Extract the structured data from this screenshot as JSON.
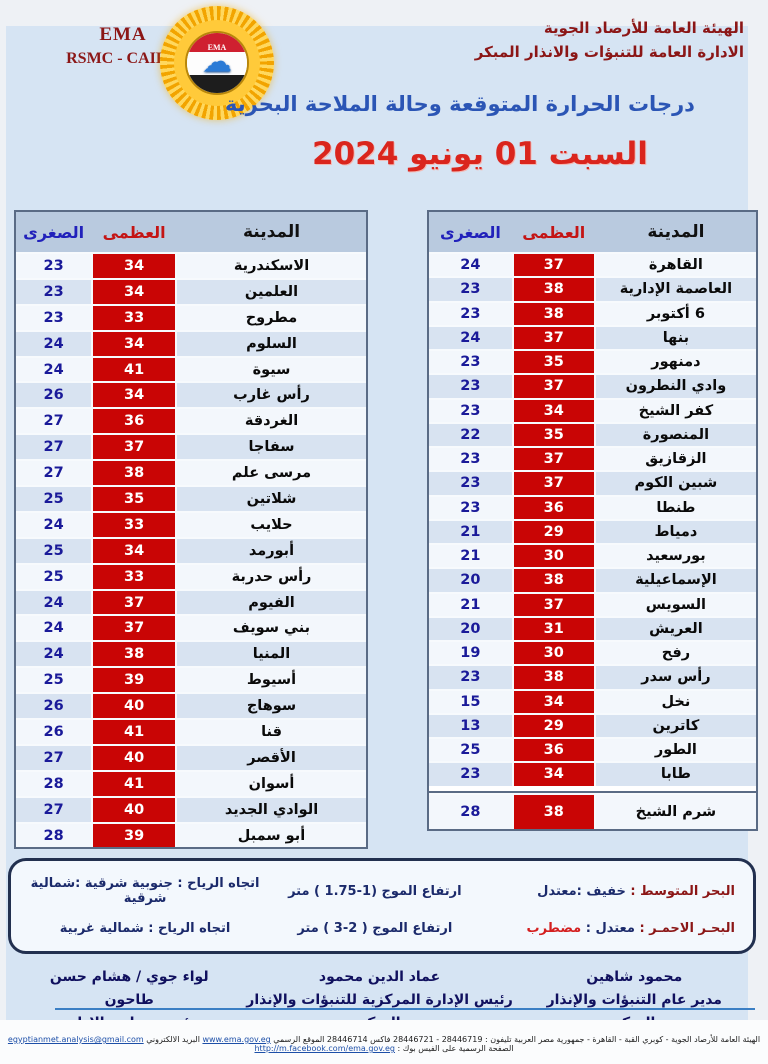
{
  "header": {
    "org_en_line1": "EMA",
    "org_en_line2": "RSMC - CAIRO",
    "org_ar_line1": "الهيئة العامة للأرصاد الجوية",
    "org_ar_line2": "الادارة العامة للتنبؤات والانذار المبكر",
    "logo_label": "EMA"
  },
  "title": "درجات الحرارة المتوقعة وحالة الملاحة البحرية",
  "date_line": "السبت 01 يونيو 2024",
  "table_headers": {
    "city": "المدينة",
    "max": "العظمى",
    "min": "الصغرى"
  },
  "left_table": {
    "rows": [
      {
        "city": "الاسكندرية",
        "min": 23,
        "max": 34
      },
      {
        "city": "العلمين",
        "min": 23,
        "max": 34
      },
      {
        "city": "مطروح",
        "min": 23,
        "max": 33
      },
      {
        "city": "السلوم",
        "min": 24,
        "max": 34
      },
      {
        "city": "سيوة",
        "min": 24,
        "max": 41
      },
      {
        "city": "رأس غارب",
        "min": 26,
        "max": 34
      },
      {
        "city": "الغردقة",
        "min": 27,
        "max": 36
      },
      {
        "city": "سفاجا",
        "min": 27,
        "max": 37
      },
      {
        "city": "مرسى علم",
        "min": 27,
        "max": 38
      },
      {
        "city": "شلاتين",
        "min": 25,
        "max": 35
      },
      {
        "city": "حلايب",
        "min": 24,
        "max": 33
      },
      {
        "city": "أبورمد",
        "min": 25,
        "max": 34
      },
      {
        "city": "رأس حدربة",
        "min": 25,
        "max": 33
      },
      {
        "city": "الفيوم",
        "min": 24,
        "max": 37
      },
      {
        "city": "بني سويف",
        "min": 24,
        "max": 37
      },
      {
        "city": "المنيا",
        "min": 24,
        "max": 38
      },
      {
        "city": "أسيوط",
        "min": 25,
        "max": 39
      },
      {
        "city": "سوهاج",
        "min": 26,
        "max": 40
      },
      {
        "city": "قنا",
        "min": 26,
        "max": 41
      },
      {
        "city": "الأقصر",
        "min": 27,
        "max": 40
      },
      {
        "city": "أسوان",
        "min": 28,
        "max": 41
      },
      {
        "city": "الوادي الجديد",
        "min": 27,
        "max": 40
      },
      {
        "city": "أبو سمبل",
        "min": 28,
        "max": 39
      }
    ]
  },
  "right_table": {
    "rows": [
      {
        "city": "القاهرة",
        "min": 24,
        "max": 37
      },
      {
        "city": "العاصمة الإدارية",
        "min": 23,
        "max": 38
      },
      {
        "city": "6 أكتوبر",
        "min": 23,
        "max": 38
      },
      {
        "city": "بنها",
        "min": 24,
        "max": 37
      },
      {
        "city": "دمنهور",
        "min": 23,
        "max": 35
      },
      {
        "city": "وادي النطرون",
        "min": 23,
        "max": 37
      },
      {
        "city": "كفر الشيخ",
        "min": 23,
        "max": 34
      },
      {
        "city": "المنصورة",
        "min": 22,
        "max": 35
      },
      {
        "city": "الزقازيق",
        "min": 23,
        "max": 37
      },
      {
        "city": "شبين الكوم",
        "min": 23,
        "max": 37
      },
      {
        "city": "طنطا",
        "min": 23,
        "max": 36
      },
      {
        "city": "دمياط",
        "min": 21,
        "max": 29
      },
      {
        "city": "بورسعيد",
        "min": 21,
        "max": 30
      },
      {
        "city": "الإسماعيلية",
        "min": 20,
        "max": 38
      },
      {
        "city": "السويس",
        "min": 21,
        "max": 37
      },
      {
        "city": "العريش",
        "min": 20,
        "max": 31
      },
      {
        "city": "رفح",
        "min": 19,
        "max": 30
      },
      {
        "city": "رأس سدر",
        "min": 23,
        "max": 38
      },
      {
        "city": "نخل",
        "min": 15,
        "max": 34
      },
      {
        "city": "كاترين",
        "min": 13,
        "max": 29
      },
      {
        "city": "الطور",
        "min": 25,
        "max": 36
      },
      {
        "city": "طابا",
        "min": 23,
        "max": 34
      }
    ],
    "special_row": {
      "city": "شرم الشيخ",
      "min": 28,
      "max": 38
    }
  },
  "marine": {
    "rows": [
      {
        "sea": "البحر المتوسط :",
        "state_normal": "خفيف :معتدل",
        "state_alert": "",
        "waves": "ارتفاع الموج (1-1.75 ) متر",
        "wind": "اتجاه الرياح : جنوبية شرقية :شمالية شرقية"
      },
      {
        "sea": "البحـر الاحمـر :",
        "state_normal": "معتدل : ",
        "state_alert": "مضطرب",
        "waves": "ارتفاع الموج ( 2-3 ) متر",
        "wind": "اتجاه الرياح : شمالية غربية"
      }
    ]
  },
  "signatures": [
    {
      "name": "محمود شاهين",
      "title": "مدير عام التنبؤات والإنذار المبكر"
    },
    {
      "name": "عماد الدين محمود",
      "title": "رئيس الإدارة المركزية للتنبؤات والإنذار المبكر"
    },
    {
      "name": "لواء جوي / هشام حسن طاحون",
      "title": "رئيس مجلس الإدارة"
    }
  ],
  "footer": {
    "segments": [
      {
        "text": "الهيئة العامة للأرصاد الجوية - كوبري القبة - القاهرة - جمهورية مصر العربية تليفون : 28446719 - 28446721 فاكس 28446714 الموقع الرسمي ",
        "link": false
      },
      {
        "text": "www.ema.gov.eg",
        "link": true
      },
      {
        "text": " البريد الالكتروني ",
        "link": false
      },
      {
        "text": "egyptianmet.analysis@gmail.com",
        "link": true
      },
      {
        "text": " الصفحة الرسمية على الفيس بوك : ",
        "link": false
      },
      {
        "text": "http://m.facebook.com/ema.gov.eg",
        "link": true
      }
    ]
  },
  "colors": {
    "panel_blue": "#d6e4f3",
    "maroon": "#8b1616",
    "max_red": "#c90505",
    "min_navy": "#1a1a99",
    "title_blue": "#2b55b5",
    "date_red": "#da251d",
    "header_row": "#b9cadf"
  }
}
